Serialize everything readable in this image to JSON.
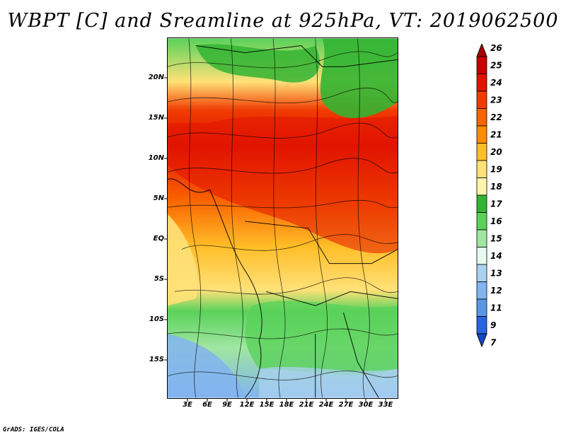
{
  "title": "WBPT [C] and Sreamline at 925hPa, VT: 2019062500",
  "credit": "GrADS: IGES/COLA",
  "lat_labels": [
    "20N",
    "15N",
    "10N",
    "5N",
    "EQ",
    "5S",
    "10S",
    "15S"
  ],
  "lon_labels": [
    "3E",
    "6E",
    "9E",
    "12E",
    "15E",
    "18E",
    "21E",
    "24E",
    "27E",
    "30E",
    "33E"
  ],
  "colorbar": {
    "labels": [
      "26",
      "25",
      "24",
      "23",
      "22",
      "21",
      "20",
      "19",
      "18",
      "17",
      "16",
      "15",
      "14",
      "13",
      "12",
      "11",
      "9",
      "7"
    ],
    "colors": [
      "#a50000",
      "#c80000",
      "#e11400",
      "#f03c00",
      "#fa6400",
      "#ff8c00",
      "#ffbe28",
      "#ffe178",
      "#fff5aa",
      "#32b432",
      "#5ad25a",
      "#a0e6a0",
      "#e6faf0",
      "#aad2f0",
      "#82b4f0",
      "#5a96e6",
      "#2864dc",
      "#1446c8"
    ]
  }
}
